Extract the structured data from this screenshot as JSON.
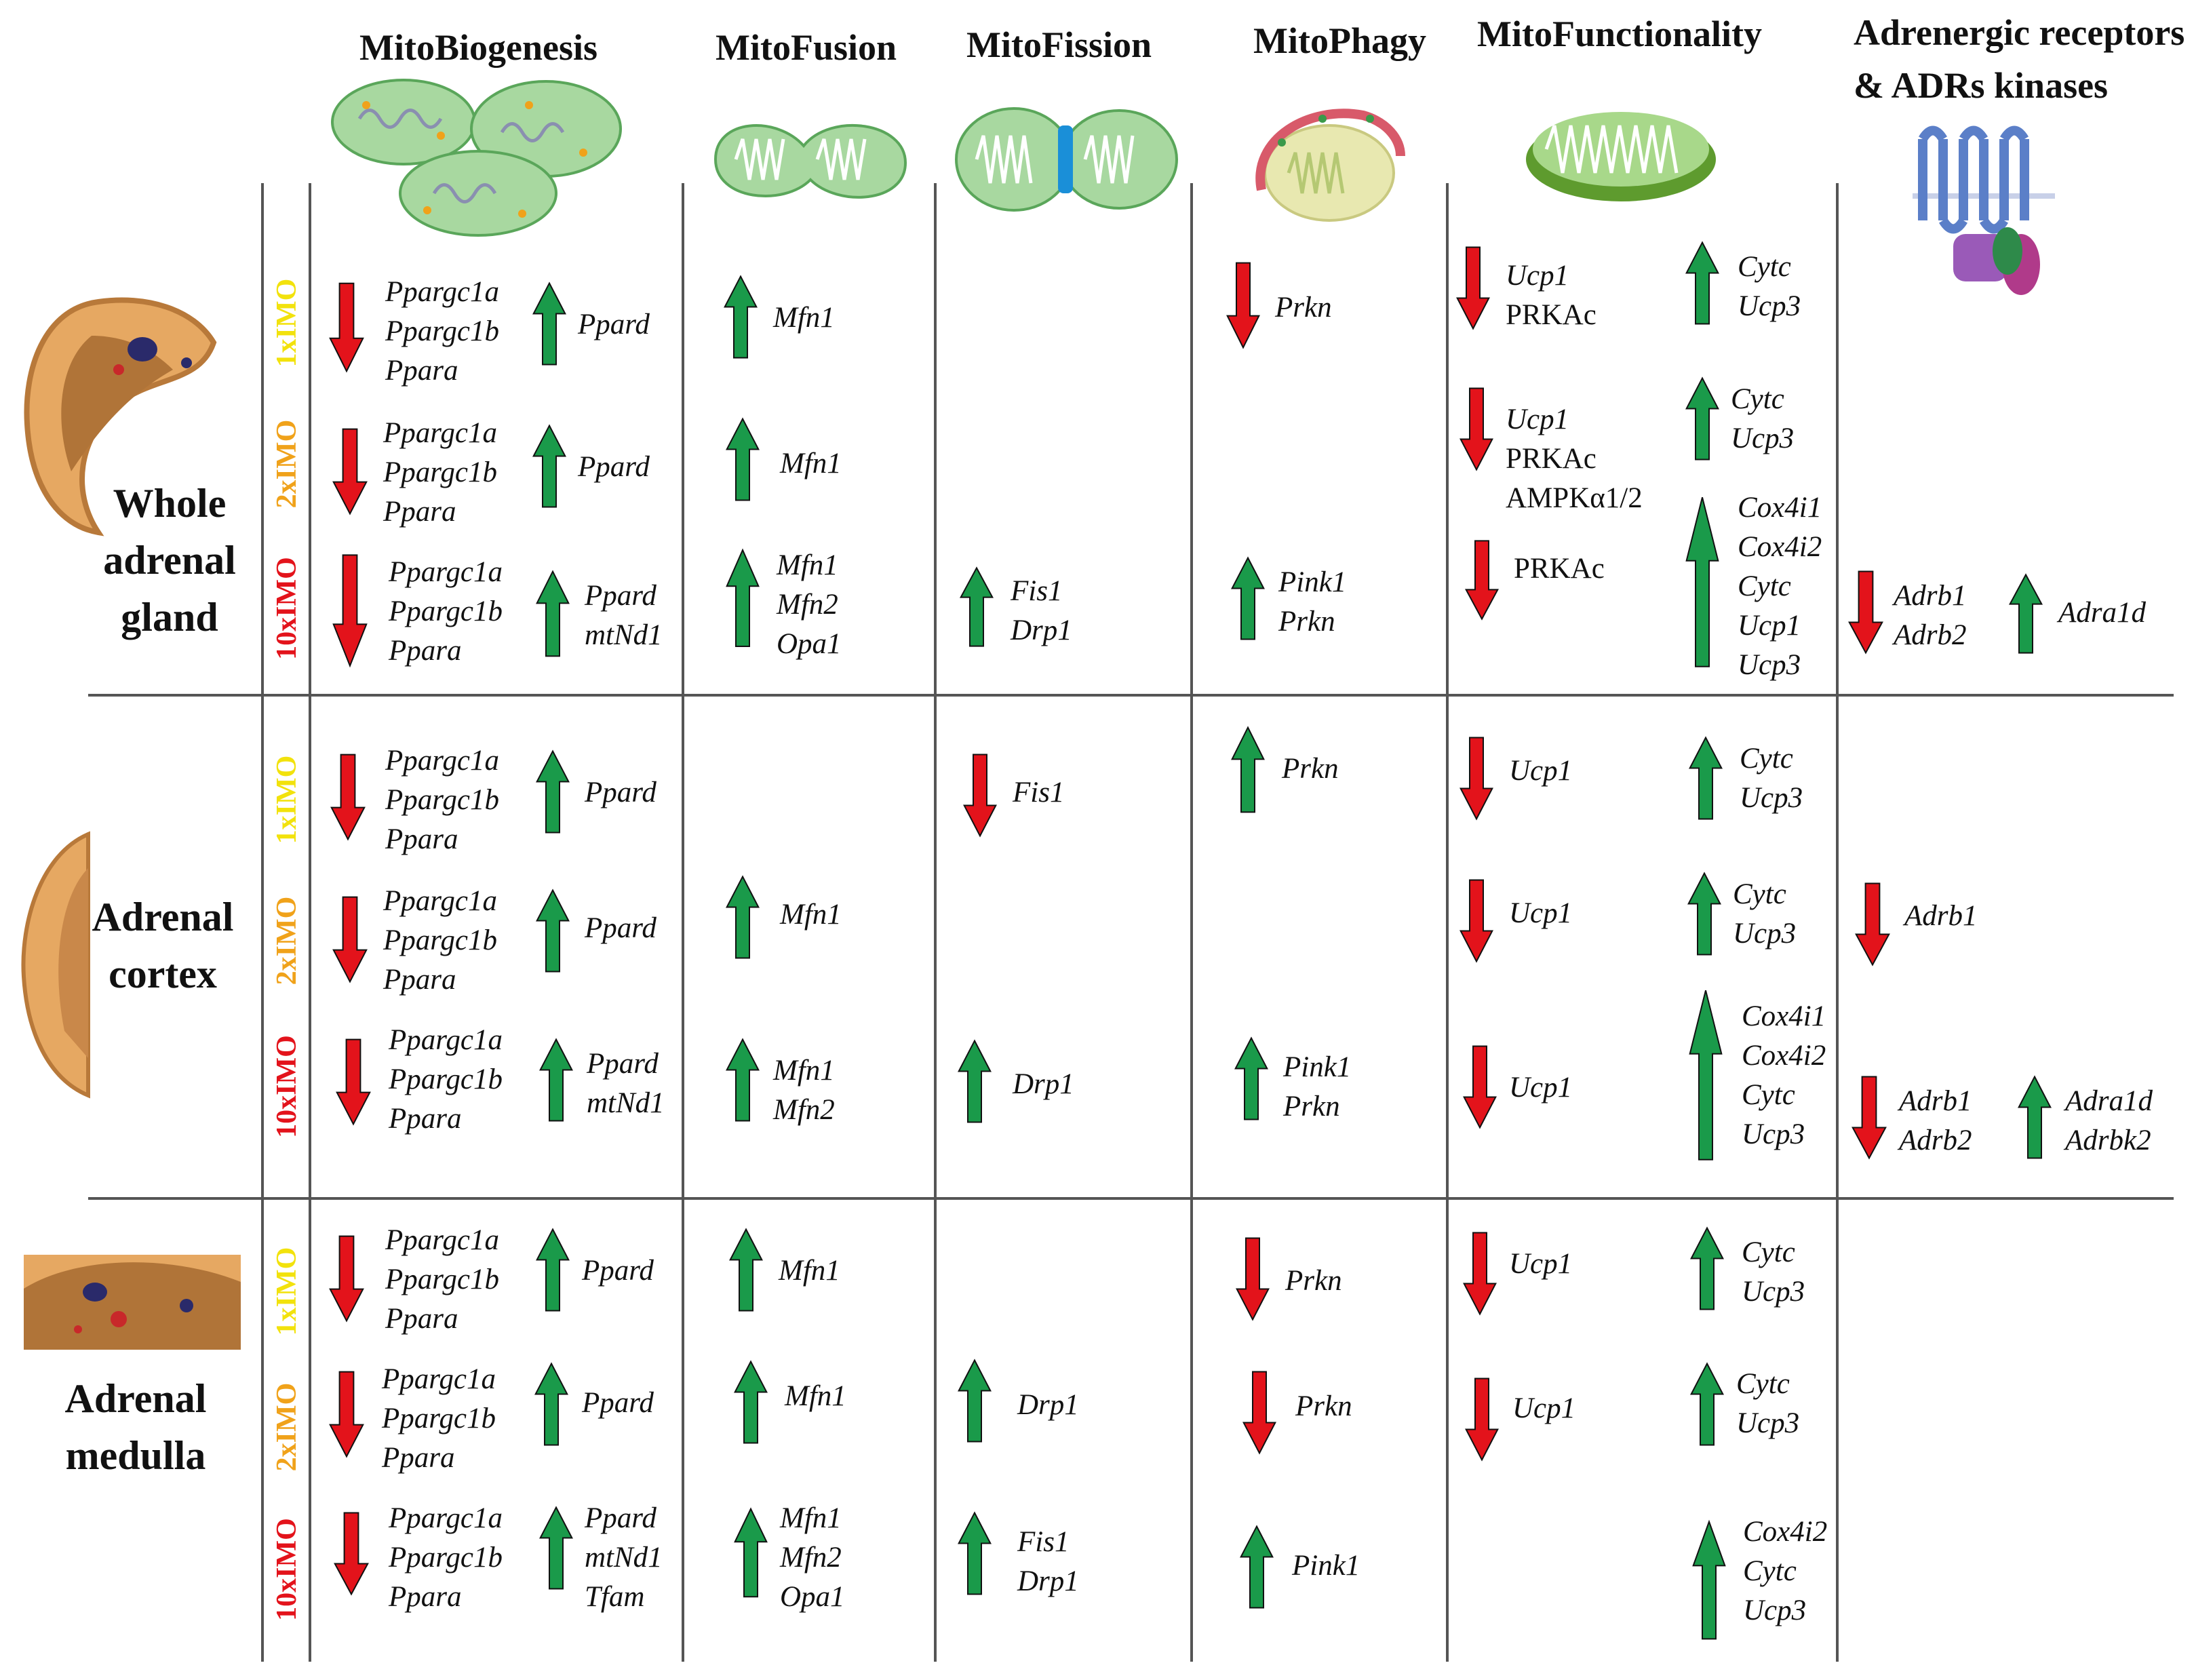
{
  "colors": {
    "up": "#1a9a4a",
    "down": "#e3131b",
    "imo1": "#f2e20c",
    "imo2": "#f0a21a",
    "imo10": "#e3131b",
    "grid": "#555555"
  },
  "headers": {
    "biogenesis": "MitoBiogenesis",
    "fusion": "MitoFusion",
    "fission": "MitoFission",
    "phagy": "MitoPhagy",
    "functionality": "MitoFunctionality",
    "adrenergic_line1": "Adrenergic receptors",
    "adrenergic_line2": "& ADRs kinases"
  },
  "row_labels": {
    "whole_line1": "Whole",
    "whole_line2": "adrenal",
    "whole_line3": "gland",
    "cortex_line1": "Adrenal",
    "cortex_line2": "cortex",
    "medulla_line1": "Adrenal",
    "medulla_line2": "medulla"
  },
  "imo_labels": {
    "x1": "1xIMO",
    "x2": "2xIMO",
    "x10": "10xIMO"
  },
  "genes": {
    "ppargc1a": "Ppargc1a",
    "ppargc1b": "Ppargc1b",
    "ppara": "Ppara",
    "ppard": "Ppard",
    "mtnd1": "mtNd1",
    "tfam": "Tfam",
    "mfn1": "Mfn1",
    "mfn2": "Mfn2",
    "opa1": "Opa1",
    "fis1": "Fis1",
    "drp1": "Drp1",
    "prkn": "Prkn",
    "pink1": "Pink1",
    "ucp1": "Ucp1",
    "ucp3": "Ucp3",
    "cytc": "Cytc",
    "cox4i1": "Cox4i1",
    "cox4i2": "Cox4i2",
    "prkac": "PRKAc",
    "ampk": "AMPKα1/2",
    "adrb1": "Adrb1",
    "adrb2": "Adrb2",
    "adra1d": "Adra1d",
    "adrbk2": "Adrbk2"
  }
}
